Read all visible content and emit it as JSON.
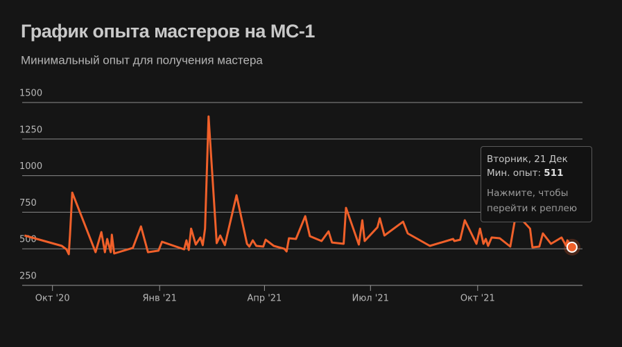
{
  "chart_data": {
    "type": "line",
    "title": "График опыта мастеров на МС-1",
    "subtitle": "Минимальный опыт для получения мастера",
    "color": "#f0602a",
    "x": [
      "2020-09-07",
      "2020-10-09",
      "2020-10-13",
      "2020-10-15",
      "2020-10-16",
      "2020-10-18",
      "2020-11-07",
      "2020-11-12",
      "2020-11-15",
      "2020-11-17",
      "2020-11-20",
      "2020-11-21",
      "2020-11-23",
      "2020-12-09",
      "2020-12-16",
      "2020-12-22",
      "2020-12-31",
      "2021-01-03",
      "2021-01-22",
      "2021-01-24",
      "2021-01-26",
      "2021-01-28",
      "2021-02-01",
      "2021-02-05",
      "2021-02-07",
      "2021-02-09",
      "2021-02-12",
      "2021-02-19",
      "2021-02-22",
      "2021-02-26",
      "2021-03-08",
      "2021-03-17",
      "2021-03-19",
      "2021-03-22",
      "2021-03-25",
      "2021-03-31",
      "2021-04-02",
      "2021-04-09",
      "2021-04-18",
      "2021-04-20",
      "2021-04-22",
      "2021-04-28",
      "2021-05-06",
      "2021-05-10",
      "2021-05-20",
      "2021-05-26",
      "2021-05-29",
      "2021-06-08",
      "2021-06-10",
      "2021-06-21",
      "2021-06-24",
      "2021-06-26",
      "2021-07-07",
      "2021-07-09",
      "2021-07-13",
      "2021-07-29",
      "2021-08-02",
      "2021-08-21",
      "2021-09-10",
      "2021-09-11",
      "2021-09-16",
      "2021-09-20",
      "2021-09-30",
      "2021-10-03",
      "2021-10-06",
      "2021-10-08",
      "2021-10-10",
      "2021-10-13",
      "2021-10-20",
      "2021-10-29",
      "2021-11-03",
      "2021-11-15",
      "2021-11-17",
      "2021-11-23",
      "2021-11-26",
      "2021-12-03",
      "2021-12-12",
      "2021-12-16",
      "2021-12-17",
      "2021-12-21"
    ],
    "values": [
      591,
      520,
      496,
      463,
      591,
      884,
      477,
      614,
      477,
      567,
      477,
      596,
      468,
      506,
      653,
      477,
      487,
      548,
      496,
      558,
      492,
      638,
      529,
      577,
      525,
      638,
      1405,
      539,
      591,
      525,
      866,
      534,
      515,
      558,
      520,
      515,
      562,
      520,
      500,
      482,
      572,
      567,
      723,
      586,
      553,
      619,
      543,
      534,
      780,
      529,
      695,
      553,
      647,
      709,
      591,
      685,
      605,
      520,
      567,
      553,
      562,
      695,
      534,
      638,
      534,
      567,
      520,
      577,
      572,
      515,
      742,
      638,
      510,
      515,
      605,
      534,
      577,
      520,
      558,
      511
    ],
    "xlim": [
      "2020-09-05",
      "2021-12-30"
    ],
    "xticks": [
      {
        "value": "2020-10-01",
        "label": "Окт '20"
      },
      {
        "value": "2021-01-01",
        "label": "Янв '21"
      },
      {
        "value": "2021-04-01",
        "label": "Апр '21"
      },
      {
        "value": "2021-07-01",
        "label": "Июл '21"
      },
      {
        "value": "2021-10-01",
        "label": "Окт '21"
      }
    ],
    "ylim": [
      250,
      1500
    ],
    "yticks": [
      250,
      500,
      750,
      1000,
      1250,
      1500
    ],
    "grid": true,
    "tooltip": {
      "title": "Вторник, 21 Дек",
      "label": "Мин. опыт:",
      "value": 511,
      "hint": "Нажмите, чтобы перейти к реплею"
    }
  }
}
